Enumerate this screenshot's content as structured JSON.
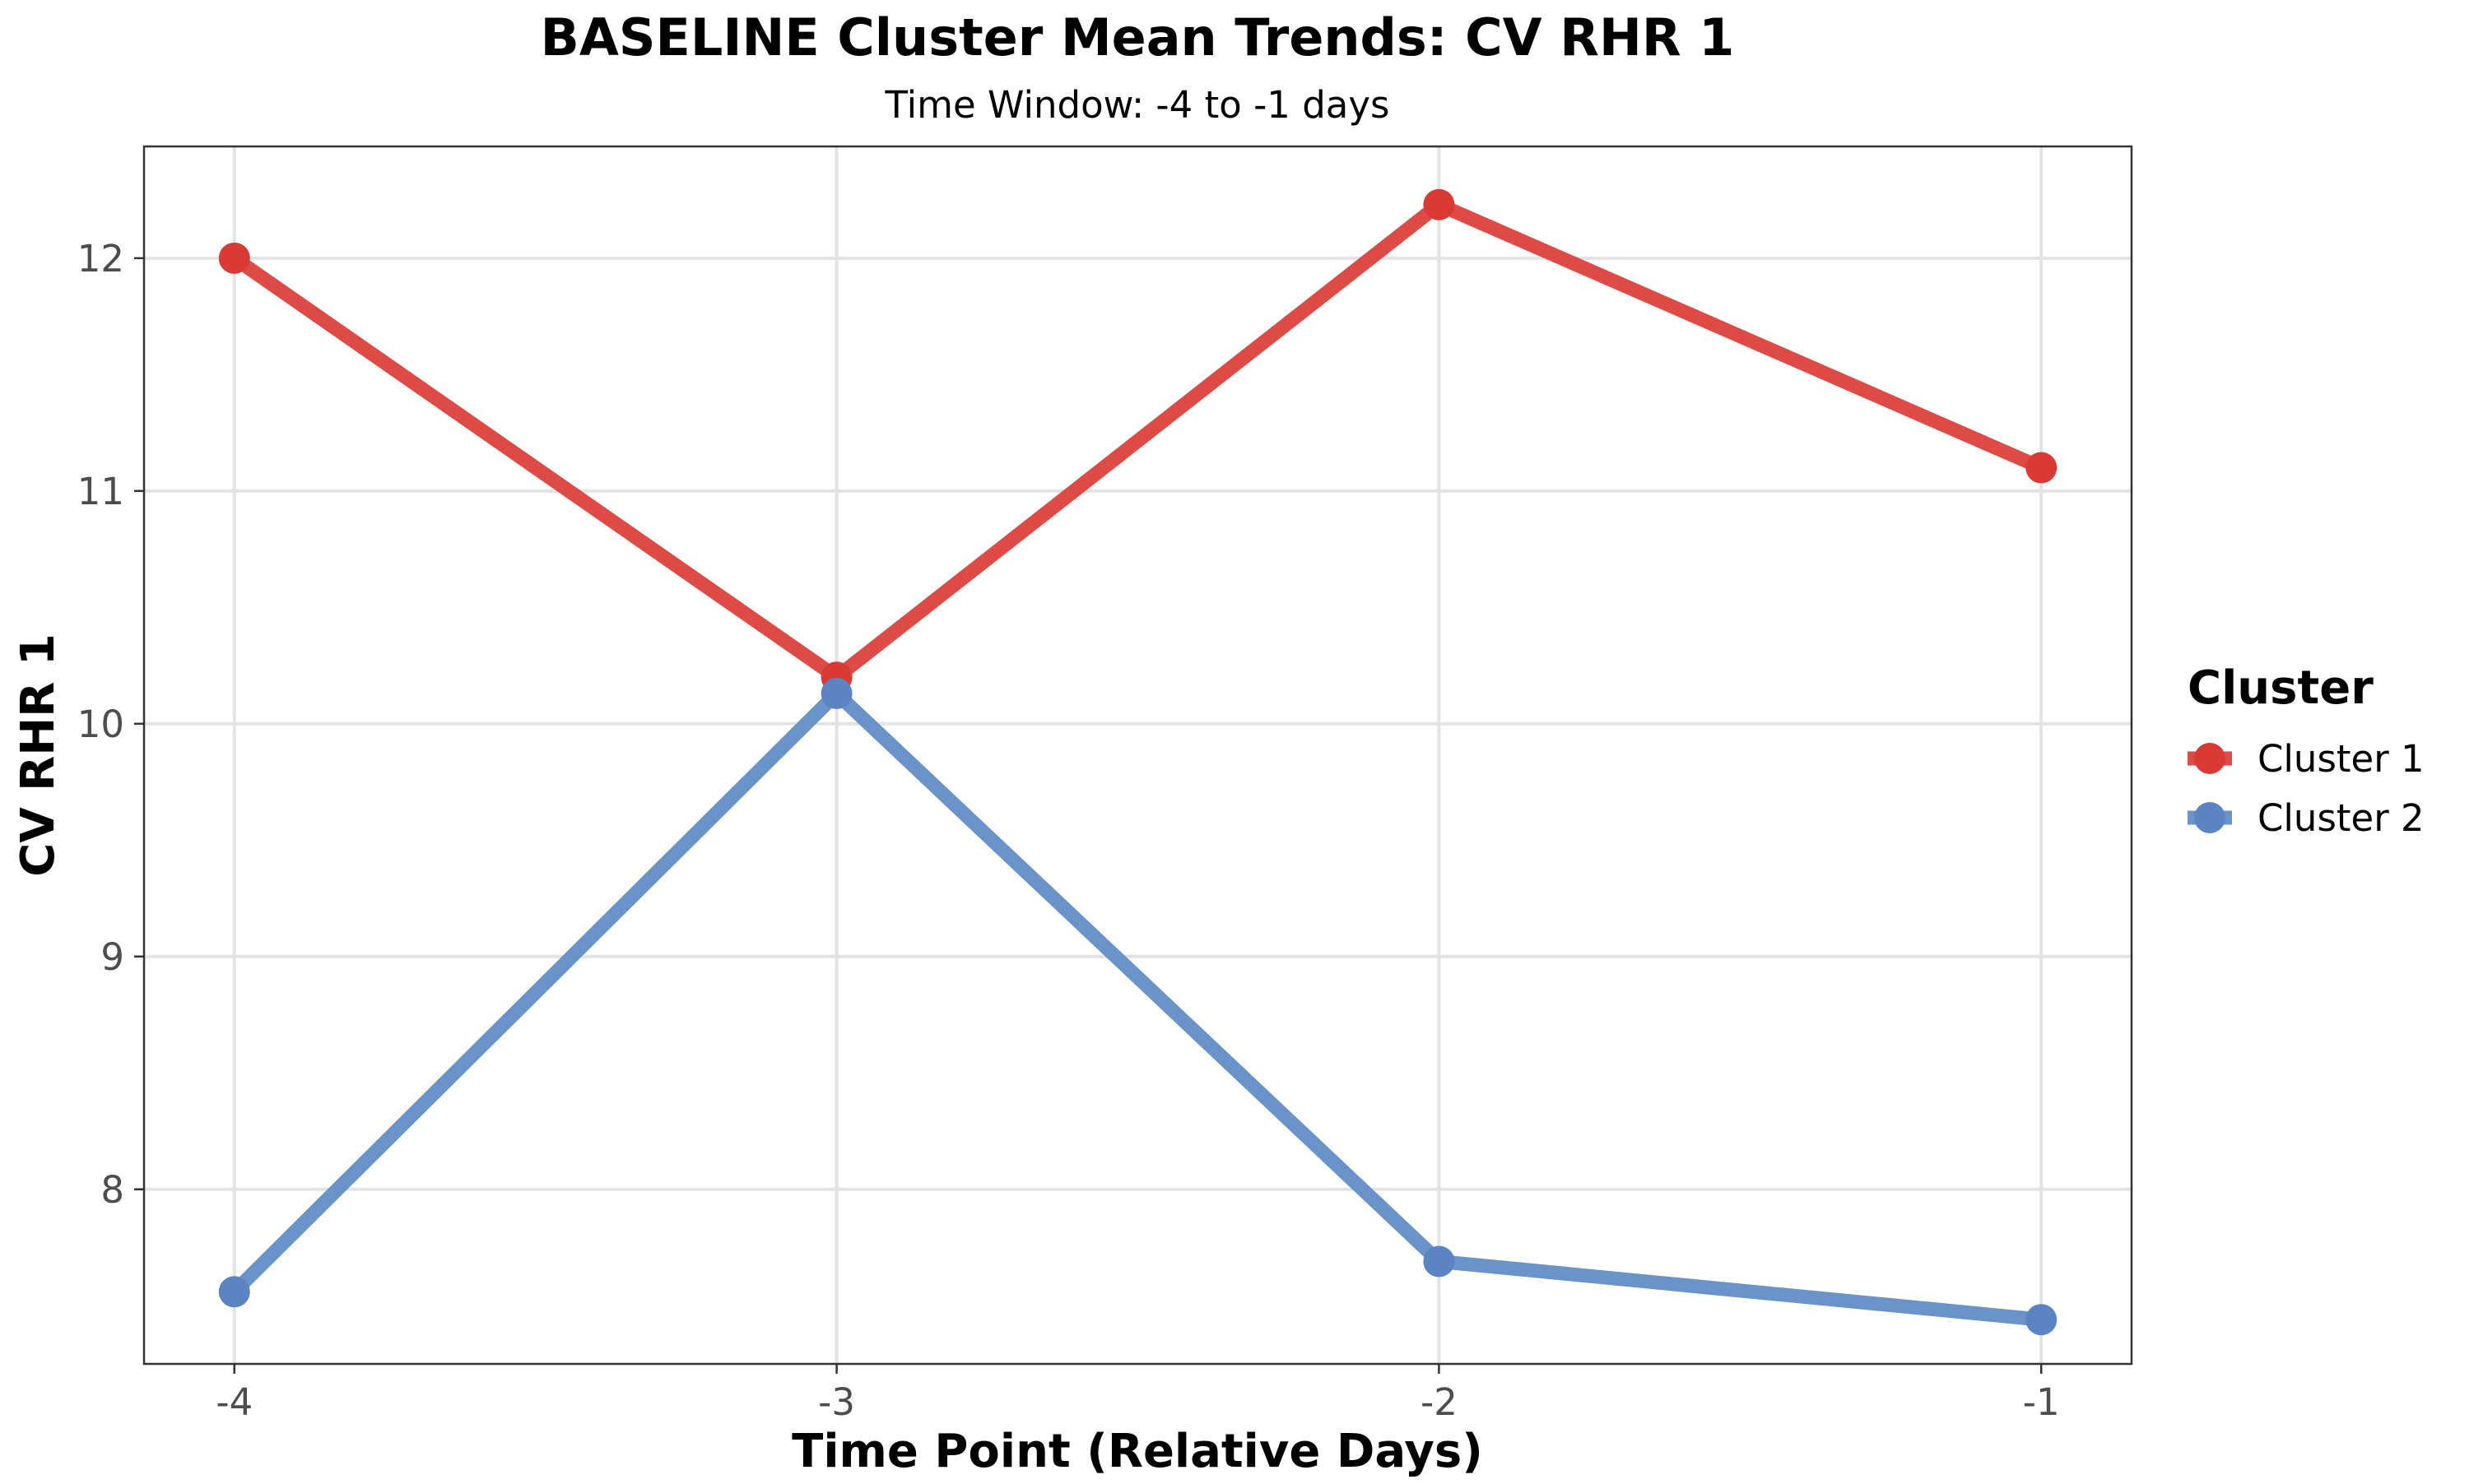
{
  "chart_data": {
    "type": "line",
    "title": "BASELINE Cluster Mean Trends: CV RHR 1",
    "subtitle": "Time Window: -4 to -1 days",
    "xlabel": "Time Point (Relative Days)",
    "ylabel": "CV RHR 1",
    "x": [
      -4,
      -3,
      -2,
      -1
    ],
    "x_tick_labels": [
      "-4",
      "-3",
      "-2",
      "-1"
    ],
    "xlim": [
      -4.15,
      -0.85
    ],
    "ylim": [
      7.25,
      12.48
    ],
    "y_ticks": [
      8,
      9,
      10,
      11,
      12
    ],
    "y_tick_labels": [
      "8",
      "9",
      "10",
      "11",
      "12"
    ],
    "grid": true,
    "legend": {
      "title": "Cluster",
      "placement": "right"
    },
    "series": [
      {
        "name": "Cluster 1",
        "color": "#DE4A45",
        "marker_color": "#DA3A35",
        "values": [
          12.0,
          10.2,
          12.23,
          11.1
        ]
      },
      {
        "name": "Cluster 2",
        "color": "#6A93C9",
        "marker_color": "#5A85C2",
        "values": [
          7.56,
          10.13,
          7.69,
          7.44
        ]
      }
    ]
  }
}
